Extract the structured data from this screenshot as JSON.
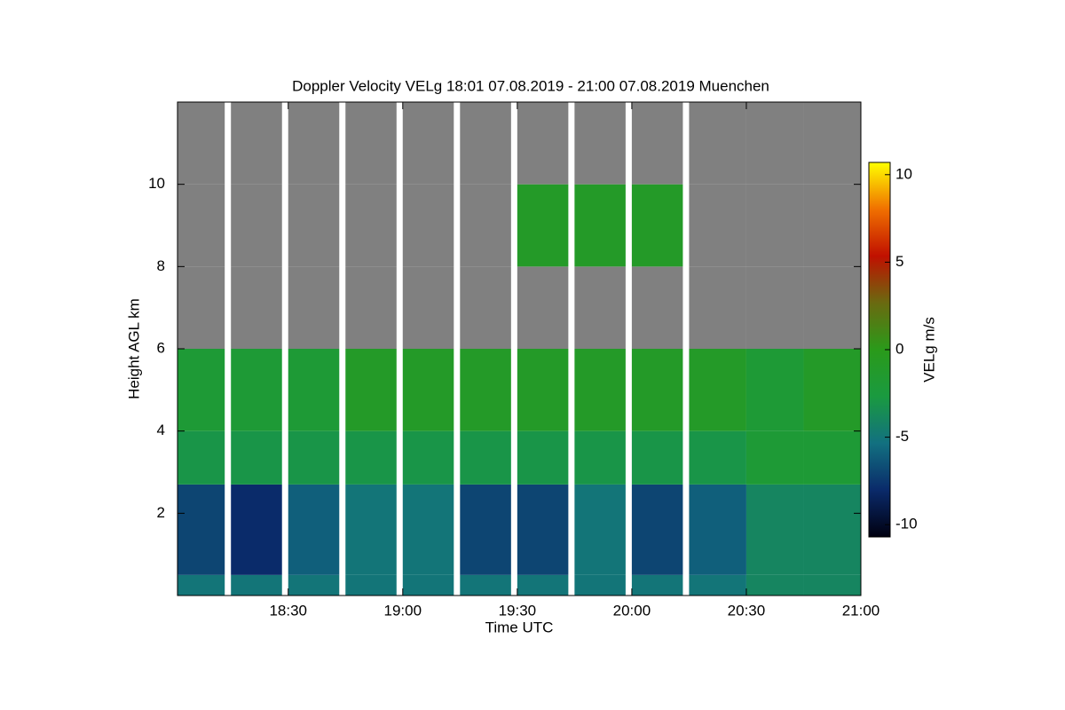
{
  "chart_data": {
    "type": "heatmap",
    "title": "Doppler Velocity VELg   18:01 07.08.2019 - 21:00 07.08.2019 Muenchen",
    "x_label": "Time UTC",
    "y_label": "Height AGL km",
    "colorbar_label": "VELg m/s",
    "x_bins": [
      18.0167,
      18.25,
      18.5,
      18.75,
      19.0,
      19.25,
      19.5,
      19.75,
      20.0,
      20.25,
      20.5,
      20.75,
      21.0
    ],
    "y_bins": [
      0,
      0.5,
      2.7,
      4,
      6,
      8,
      10,
      12
    ],
    "z": [
      [
        -5,
        -5,
        -5,
        -5,
        -5,
        -5,
        -5,
        -5,
        -5,
        -5,
        -4,
        -4
      ],
      [
        -7,
        -8,
        -6,
        -5,
        -5,
        -7,
        -7,
        -5,
        -7,
        -6,
        -4,
        -4
      ],
      [
        -3,
        -3,
        -3,
        -3,
        -3,
        -3,
        -3,
        -3,
        -3,
        -3,
        -2,
        -2
      ],
      [
        -2,
        -2,
        -2,
        -1,
        -1,
        -1,
        -1,
        -1,
        -1,
        -1,
        -2,
        -1
      ],
      [
        null,
        null,
        null,
        null,
        null,
        null,
        null,
        null,
        null,
        null,
        null,
        null
      ],
      [
        null,
        null,
        null,
        null,
        null,
        null,
        -1,
        -1,
        -1,
        null,
        null,
        null
      ],
      [
        null,
        null,
        null,
        null,
        null,
        null,
        null,
        null,
        null,
        null,
        null,
        null
      ]
    ],
    "xlim": [
      18.0167,
      21.0
    ],
    "xticks": [
      {
        "value": 18.5,
        "label": "18:30"
      },
      {
        "value": 19.0,
        "label": "19:00"
      },
      {
        "value": 19.5,
        "label": "19:30"
      },
      {
        "value": 20.0,
        "label": "20:00"
      },
      {
        "value": 20.5,
        "label": "20:30"
      },
      {
        "value": 21.0,
        "label": "21:00"
      }
    ],
    "ylim": [
      0,
      12
    ],
    "yticks": [
      2,
      4,
      6,
      8,
      10
    ],
    "zlim": [
      -10.7,
      10.7
    ],
    "zticks": [
      10,
      5,
      0,
      -5,
      -10
    ],
    "colors": [
      "#000010",
      "#0a2a6a",
      "#127080",
      "#1a9a40",
      "#2a9a1a",
      "#6a6a10",
      "#c01000",
      "#f07000",
      "#ffff00"
    ],
    "nan_color": "#808080"
  }
}
